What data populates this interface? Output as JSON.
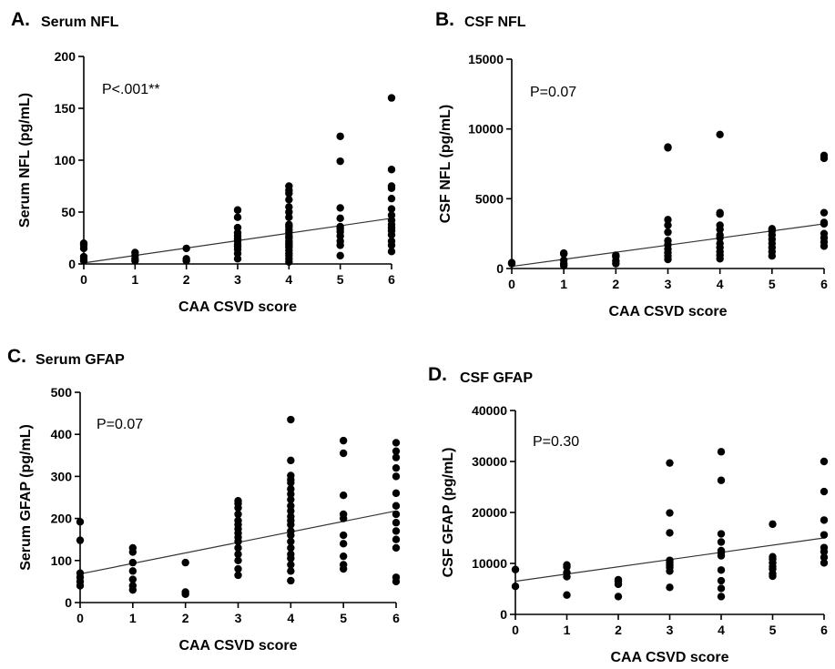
{
  "chart_data": [
    {
      "id": "A",
      "letter": "A.",
      "title": "Serum NFL",
      "type": "scatter",
      "xlabel": "CAA CSVD score",
      "ylabel": "Serum  NFL (pg/mL)",
      "annotation": "P<.001**",
      "xlim": [
        0,
        6
      ],
      "ylim": [
        0,
        200
      ],
      "xticks": [
        0,
        1,
        2,
        3,
        4,
        5,
        6
      ],
      "yticks": [
        0,
        50,
        100,
        150,
        200
      ],
      "trendline": [
        [
          0,
          1
        ],
        [
          6,
          44
        ]
      ],
      "points": [
        [
          0,
          3
        ],
        [
          0,
          5
        ],
        [
          0,
          7
        ],
        [
          0,
          15
        ],
        [
          0,
          18
        ],
        [
          0,
          20
        ],
        [
          1,
          3
        ],
        [
          1,
          5
        ],
        [
          1,
          8
        ],
        [
          1,
          11
        ],
        [
          2,
          3
        ],
        [
          2,
          5
        ],
        [
          2,
          15
        ],
        [
          3,
          5
        ],
        [
          3,
          10
        ],
        [
          3,
          14
        ],
        [
          3,
          17
        ],
        [
          3,
          19
        ],
        [
          3,
          22
        ],
        [
          3,
          24
        ],
        [
          3,
          27
        ],
        [
          3,
          30
        ],
        [
          3,
          35
        ],
        [
          3,
          45
        ],
        [
          3,
          52
        ],
        [
          4,
          2
        ],
        [
          4,
          5
        ],
        [
          4,
          8
        ],
        [
          4,
          10
        ],
        [
          4,
          13
        ],
        [
          4,
          16
        ],
        [
          4,
          18
        ],
        [
          4,
          20
        ],
        [
          4,
          22
        ],
        [
          4,
          25
        ],
        [
          4,
          27
        ],
        [
          4,
          30
        ],
        [
          4,
          33
        ],
        [
          4,
          36
        ],
        [
          4,
          38
        ],
        [
          4,
          45
        ],
        [
          4,
          50
        ],
        [
          4,
          55
        ],
        [
          4,
          62
        ],
        [
          4,
          68
        ],
        [
          4,
          71
        ],
        [
          4,
          75
        ],
        [
          5,
          8
        ],
        [
          5,
          18
        ],
        [
          5,
          22
        ],
        [
          5,
          27
        ],
        [
          5,
          31
        ],
        [
          5,
          34
        ],
        [
          5,
          36
        ],
        [
          5,
          44
        ],
        [
          5,
          54
        ],
        [
          5,
          99
        ],
        [
          5,
          123
        ],
        [
          6,
          12
        ],
        [
          6,
          18
        ],
        [
          6,
          22
        ],
        [
          6,
          28
        ],
        [
          6,
          32
        ],
        [
          6,
          35
        ],
        [
          6,
          38
        ],
        [
          6,
          42
        ],
        [
          6,
          47
        ],
        [
          6,
          53
        ],
        [
          6,
          63
        ],
        [
          6,
          73
        ],
        [
          6,
          75
        ],
        [
          6,
          91
        ],
        [
          6,
          160
        ]
      ]
    },
    {
      "id": "B",
      "letter": "B.",
      "title": "CSF NFL",
      "type": "scatter",
      "xlabel": "CAA CSVD score",
      "ylabel": "CSF NFL (pg/mL)",
      "annotation": "P=0.07",
      "xlim": [
        0,
        6
      ],
      "ylim": [
        0,
        15000
      ],
      "xticks": [
        0,
        1,
        2,
        3,
        4,
        5,
        6
      ],
      "yticks": [
        0,
        5000,
        10000,
        15000
      ],
      "trendline": [
        [
          0,
          150
        ],
        [
          6,
          3200
        ]
      ],
      "points": [
        [
          0,
          350
        ],
        [
          0,
          420
        ],
        [
          1,
          200
        ],
        [
          1,
          350
        ],
        [
          1,
          600
        ],
        [
          1,
          1050
        ],
        [
          1,
          1100
        ],
        [
          2,
          350
        ],
        [
          2,
          550
        ],
        [
          2,
          850
        ],
        [
          2,
          950
        ],
        [
          3,
          650
        ],
        [
          3,
          900
        ],
        [
          3,
          1150
        ],
        [
          3,
          1400
        ],
        [
          3,
          1700
        ],
        [
          3,
          2000
        ],
        [
          3,
          2600
        ],
        [
          3,
          3100
        ],
        [
          3,
          3500
        ],
        [
          3,
          8700
        ],
        [
          3,
          8650
        ],
        [
          4,
          700
        ],
        [
          4,
          950
        ],
        [
          4,
          1200
        ],
        [
          4,
          1500
        ],
        [
          4,
          1800
        ],
        [
          4,
          2200
        ],
        [
          4,
          2400
        ],
        [
          4,
          2800
        ],
        [
          4,
          3100
        ],
        [
          4,
          3900
        ],
        [
          4,
          4000
        ],
        [
          4,
          9600
        ],
        [
          5,
          900
        ],
        [
          5,
          1200
        ],
        [
          5,
          1500
        ],
        [
          5,
          1800
        ],
        [
          5,
          2100
        ],
        [
          5,
          2400
        ],
        [
          5,
          2700
        ],
        [
          5,
          2850
        ],
        [
          6,
          1600
        ],
        [
          6,
          1900
        ],
        [
          6,
          2200
        ],
        [
          6,
          2500
        ],
        [
          6,
          3200
        ],
        [
          6,
          3300
        ],
        [
          6,
          4000
        ],
        [
          6,
          7900
        ],
        [
          6,
          8100
        ]
      ]
    },
    {
      "id": "C",
      "letter": "C.",
      "title": "Serum GFAP",
      "type": "scatter",
      "xlabel": "CAA CSVD score",
      "ylabel": "Serum GFAP (pg/mL)",
      "annotation": "P=0.07",
      "xlim": [
        0,
        6
      ],
      "ylim": [
        0,
        500
      ],
      "xticks": [
        0,
        1,
        2,
        3,
        4,
        5,
        6
      ],
      "yticks": [
        0,
        100,
        200,
        300,
        400,
        500
      ],
      "trendline": [
        [
          0,
          68
        ],
        [
          6,
          218
        ]
      ],
      "points": [
        [
          0,
          40
        ],
        [
          0,
          50
        ],
        [
          0,
          60
        ],
        [
          0,
          70
        ],
        [
          0,
          148
        ],
        [
          0,
          192
        ],
        [
          1,
          30
        ],
        [
          1,
          40
        ],
        [
          1,
          55
        ],
        [
          1,
          75
        ],
        [
          1,
          95
        ],
        [
          1,
          120
        ],
        [
          1,
          130
        ],
        [
          2,
          20
        ],
        [
          2,
          25
        ],
        [
          2,
          95
        ],
        [
          3,
          65
        ],
        [
          3,
          80
        ],
        [
          3,
          100
        ],
        [
          3,
          115
        ],
        [
          3,
          130
        ],
        [
          3,
          145
        ],
        [
          3,
          155
        ],
        [
          3,
          165
        ],
        [
          3,
          175
        ],
        [
          3,
          185
        ],
        [
          3,
          195
        ],
        [
          3,
          210
        ],
        [
          3,
          225
        ],
        [
          3,
          235
        ],
        [
          3,
          242
        ],
        [
          4,
          52
        ],
        [
          4,
          75
        ],
        [
          4,
          90
        ],
        [
          4,
          105
        ],
        [
          4,
          115
        ],
        [
          4,
          130
        ],
        [
          4,
          145
        ],
        [
          4,
          160
        ],
        [
          4,
          170
        ],
        [
          4,
          185
        ],
        [
          4,
          195
        ],
        [
          4,
          205
        ],
        [
          4,
          218
        ],
        [
          4,
          230
        ],
        [
          4,
          245
        ],
        [
          4,
          258
        ],
        [
          4,
          270
        ],
        [
          4,
          285
        ],
        [
          4,
          292
        ],
        [
          4,
          302
        ],
        [
          4,
          338
        ],
        [
          4,
          435
        ],
        [
          5,
          80
        ],
        [
          5,
          90
        ],
        [
          5,
          110
        ],
        [
          5,
          140
        ],
        [
          5,
          160
        ],
        [
          5,
          200
        ],
        [
          5,
          210
        ],
        [
          5,
          255
        ],
        [
          5,
          355
        ],
        [
          5,
          385
        ],
        [
          6,
          50
        ],
        [
          6,
          60
        ],
        [
          6,
          130
        ],
        [
          6,
          150
        ],
        [
          6,
          170
        ],
        [
          6,
          190
        ],
        [
          6,
          210
        ],
        [
          6,
          230
        ],
        [
          6,
          260
        ],
        [
          6,
          300
        ],
        [
          6,
          320
        ],
        [
          6,
          345
        ],
        [
          6,
          360
        ],
        [
          6,
          380
        ]
      ]
    },
    {
      "id": "D",
      "letter": "D.",
      "title": "CSF GFAP",
      "type": "scatter",
      "xlabel": "CAA CSVD score",
      "ylabel": "CSF GFAP (pg/mL)",
      "annotation": "P=0.30",
      "xlim": [
        0,
        6
      ],
      "ylim": [
        0,
        40000
      ],
      "xticks": [
        0,
        1,
        2,
        3,
        4,
        5,
        6
      ],
      "yticks": [
        0,
        10000,
        20000,
        30000,
        40000
      ],
      "trendline": [
        [
          0,
          6500
        ],
        [
          6,
          15000
        ]
      ],
      "points": [
        [
          0,
          5500
        ],
        [
          0,
          8800
        ],
        [
          1,
          3800
        ],
        [
          1,
          7400
        ],
        [
          1,
          8200
        ],
        [
          1,
          9300
        ],
        [
          1,
          9700
        ],
        [
          2,
          3500
        ],
        [
          2,
          5900
        ],
        [
          2,
          6800
        ],
        [
          2,
          6500
        ],
        [
          3,
          5300
        ],
        [
          3,
          8500
        ],
        [
          3,
          9200
        ],
        [
          3,
          9700
        ],
        [
          3,
          10200
        ],
        [
          3,
          10600
        ],
        [
          3,
          16000
        ],
        [
          3,
          19900
        ],
        [
          3,
          29700
        ],
        [
          4,
          3500
        ],
        [
          4,
          5100
        ],
        [
          4,
          6600
        ],
        [
          4,
          8700
        ],
        [
          4,
          11500
        ],
        [
          4,
          12100
        ],
        [
          4,
          12500
        ],
        [
          4,
          14200
        ],
        [
          4,
          15800
        ],
        [
          4,
          26300
        ],
        [
          4,
          31900
        ],
        [
          5,
          7500
        ],
        [
          5,
          8000
        ],
        [
          5,
          8900
        ],
        [
          5,
          9400
        ],
        [
          5,
          10100
        ],
        [
          5,
          10800
        ],
        [
          5,
          11300
        ],
        [
          5,
          17700
        ],
        [
          6,
          10100
        ],
        [
          6,
          11200
        ],
        [
          6,
          12300
        ],
        [
          6,
          13100
        ],
        [
          6,
          15600
        ],
        [
          6,
          18500
        ],
        [
          6,
          24100
        ],
        [
          6,
          30000
        ]
      ]
    }
  ]
}
